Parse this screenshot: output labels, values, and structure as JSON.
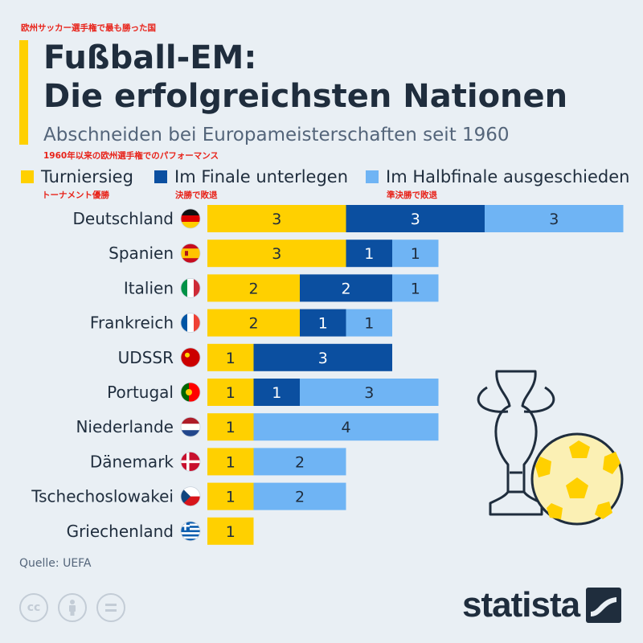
{
  "annotations": {
    "title_jp": "欧州サッカー選手権で最も勝った国",
    "subtitle_jp": "1960年以来の欧州選手権でのパフォーマンス",
    "legend_jp": [
      "トーナメント優勝",
      "決勝で敗退",
      "準決勝で敗退"
    ]
  },
  "colors": {
    "yellow": "#ffd000",
    "dark_blue": "#0b4fa0",
    "light_blue": "#6fb4f4",
    "accent": "#ffd000"
  },
  "source": "Quelle: UEFA",
  "logo_text": "statista",
  "cc_icons": [
    "cc-icon",
    "by-icon",
    "nd-icon"
  ],
  "chart_data": {
    "type": "bar",
    "orientation": "horizontal",
    "stacked": true,
    "title": "Fußball-EM:\nDie erfolgreichsten Nationen",
    "title_lines": [
      "Fußball-EM:",
      "Die erfolgreichsten Nationen"
    ],
    "subtitle": "Abschneiden bei Europameisterschaften seit 1960",
    "categories": [
      "Deutschland",
      "Spanien",
      "Italien",
      "Frankreich",
      "UDSSR",
      "Portugal",
      "Niederlande",
      "Dänemark",
      "Tschechoslowakei",
      "Griechenland"
    ],
    "flags": [
      "de",
      "es",
      "it",
      "fr",
      "su",
      "pt",
      "nl",
      "dk",
      "cz",
      "gr"
    ],
    "series": [
      {
        "name": "Turniersieg",
        "color": "#ffd000",
        "values": [
          3,
          3,
          2,
          2,
          1,
          1,
          1,
          1,
          1,
          1
        ]
      },
      {
        "name": "Im Finale unterlegen",
        "color": "#0b4fa0",
        "values": [
          3,
          1,
          2,
          1,
          3,
          1,
          0,
          0,
          0,
          0
        ]
      },
      {
        "name": "Im Halbfinale ausgeschieden",
        "color": "#6fb4f4",
        "values": [
          3,
          1,
          1,
          1,
          0,
          3,
          4,
          2,
          2,
          0
        ]
      }
    ],
    "xlim": [
      0,
      9
    ]
  }
}
